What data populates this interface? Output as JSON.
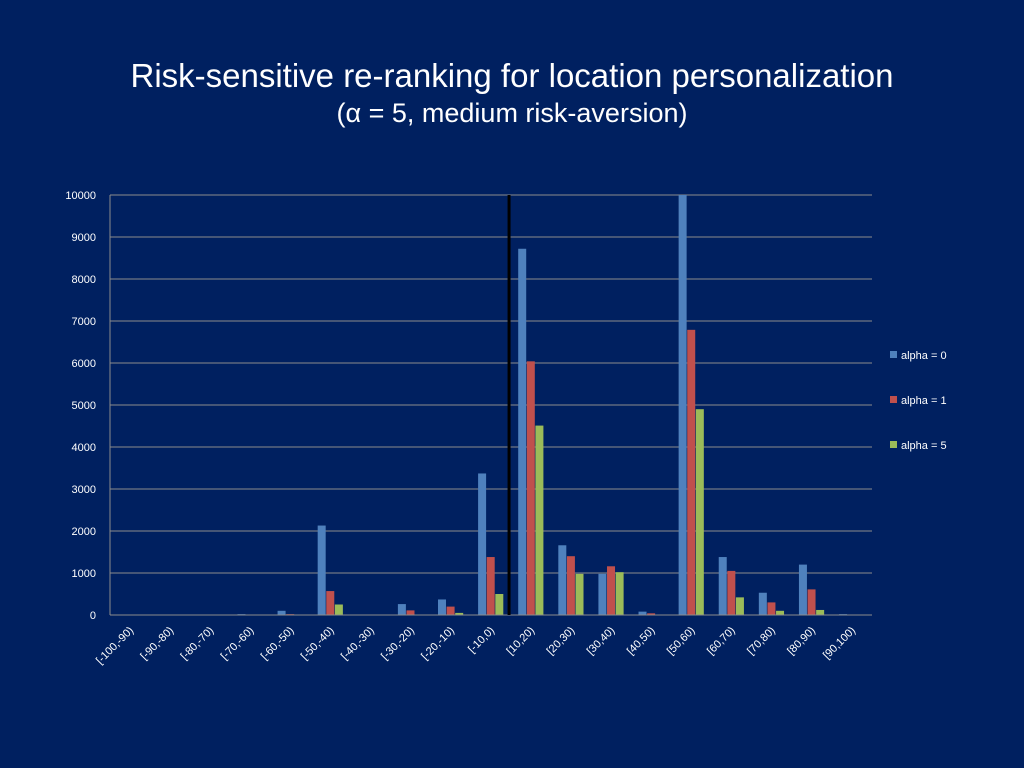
{
  "title": "Risk-sensitive re-ranking  for location personalization",
  "subtitle": "(α = 5, medium risk-aversion)",
  "colors": {
    "background": "#002060",
    "series": [
      "#4F81BD",
      "#C0504D",
      "#9BBB59"
    ],
    "grid": "#8C8C8C",
    "divider": "#000000"
  },
  "chart_data": {
    "type": "bar",
    "categories": [
      "[-100,-90)",
      "[-90,-80)",
      "[-80,-70)",
      "[-70,-60)",
      "[-60,-50)",
      "[-50,-40)",
      "[-40,-30)",
      "[-30,-20)",
      "[-20,-10)",
      "[-10,0)",
      "[10,20)",
      "[20,30)",
      "[30,40)",
      "[40,50)",
      "[50,60)",
      "[60,70)",
      "[70,80)",
      "[80,90)",
      "[90,100)"
    ],
    "series": [
      {
        "name": "alpha = 0",
        "values": [
          0,
          0,
          0,
          20,
          100,
          2130,
          0,
          260,
          370,
          3370,
          8720,
          1660,
          980,
          80,
          10000,
          1380,
          530,
          1200,
          20
        ]
      },
      {
        "name": "alpha = 1",
        "values": [
          0,
          0,
          0,
          0,
          20,
          570,
          0,
          110,
          200,
          1380,
          6040,
          1400,
          1160,
          40,
          6790,
          1050,
          300,
          610,
          0
        ]
      },
      {
        "name": "alpha = 5",
        "values": [
          0,
          0,
          0,
          0,
          0,
          250,
          0,
          0,
          50,
          500,
          4510,
          980,
          1020,
          0,
          4900,
          420,
          100,
          120,
          0
        ]
      }
    ],
    "ylim": [
      0,
      10000
    ],
    "yticks": [
      0,
      1000,
      2000,
      3000,
      4000,
      5000,
      6000,
      7000,
      8000,
      9000,
      10000
    ],
    "grid": true,
    "legend_position": "right",
    "divider_after_category": "[-10,0)"
  }
}
